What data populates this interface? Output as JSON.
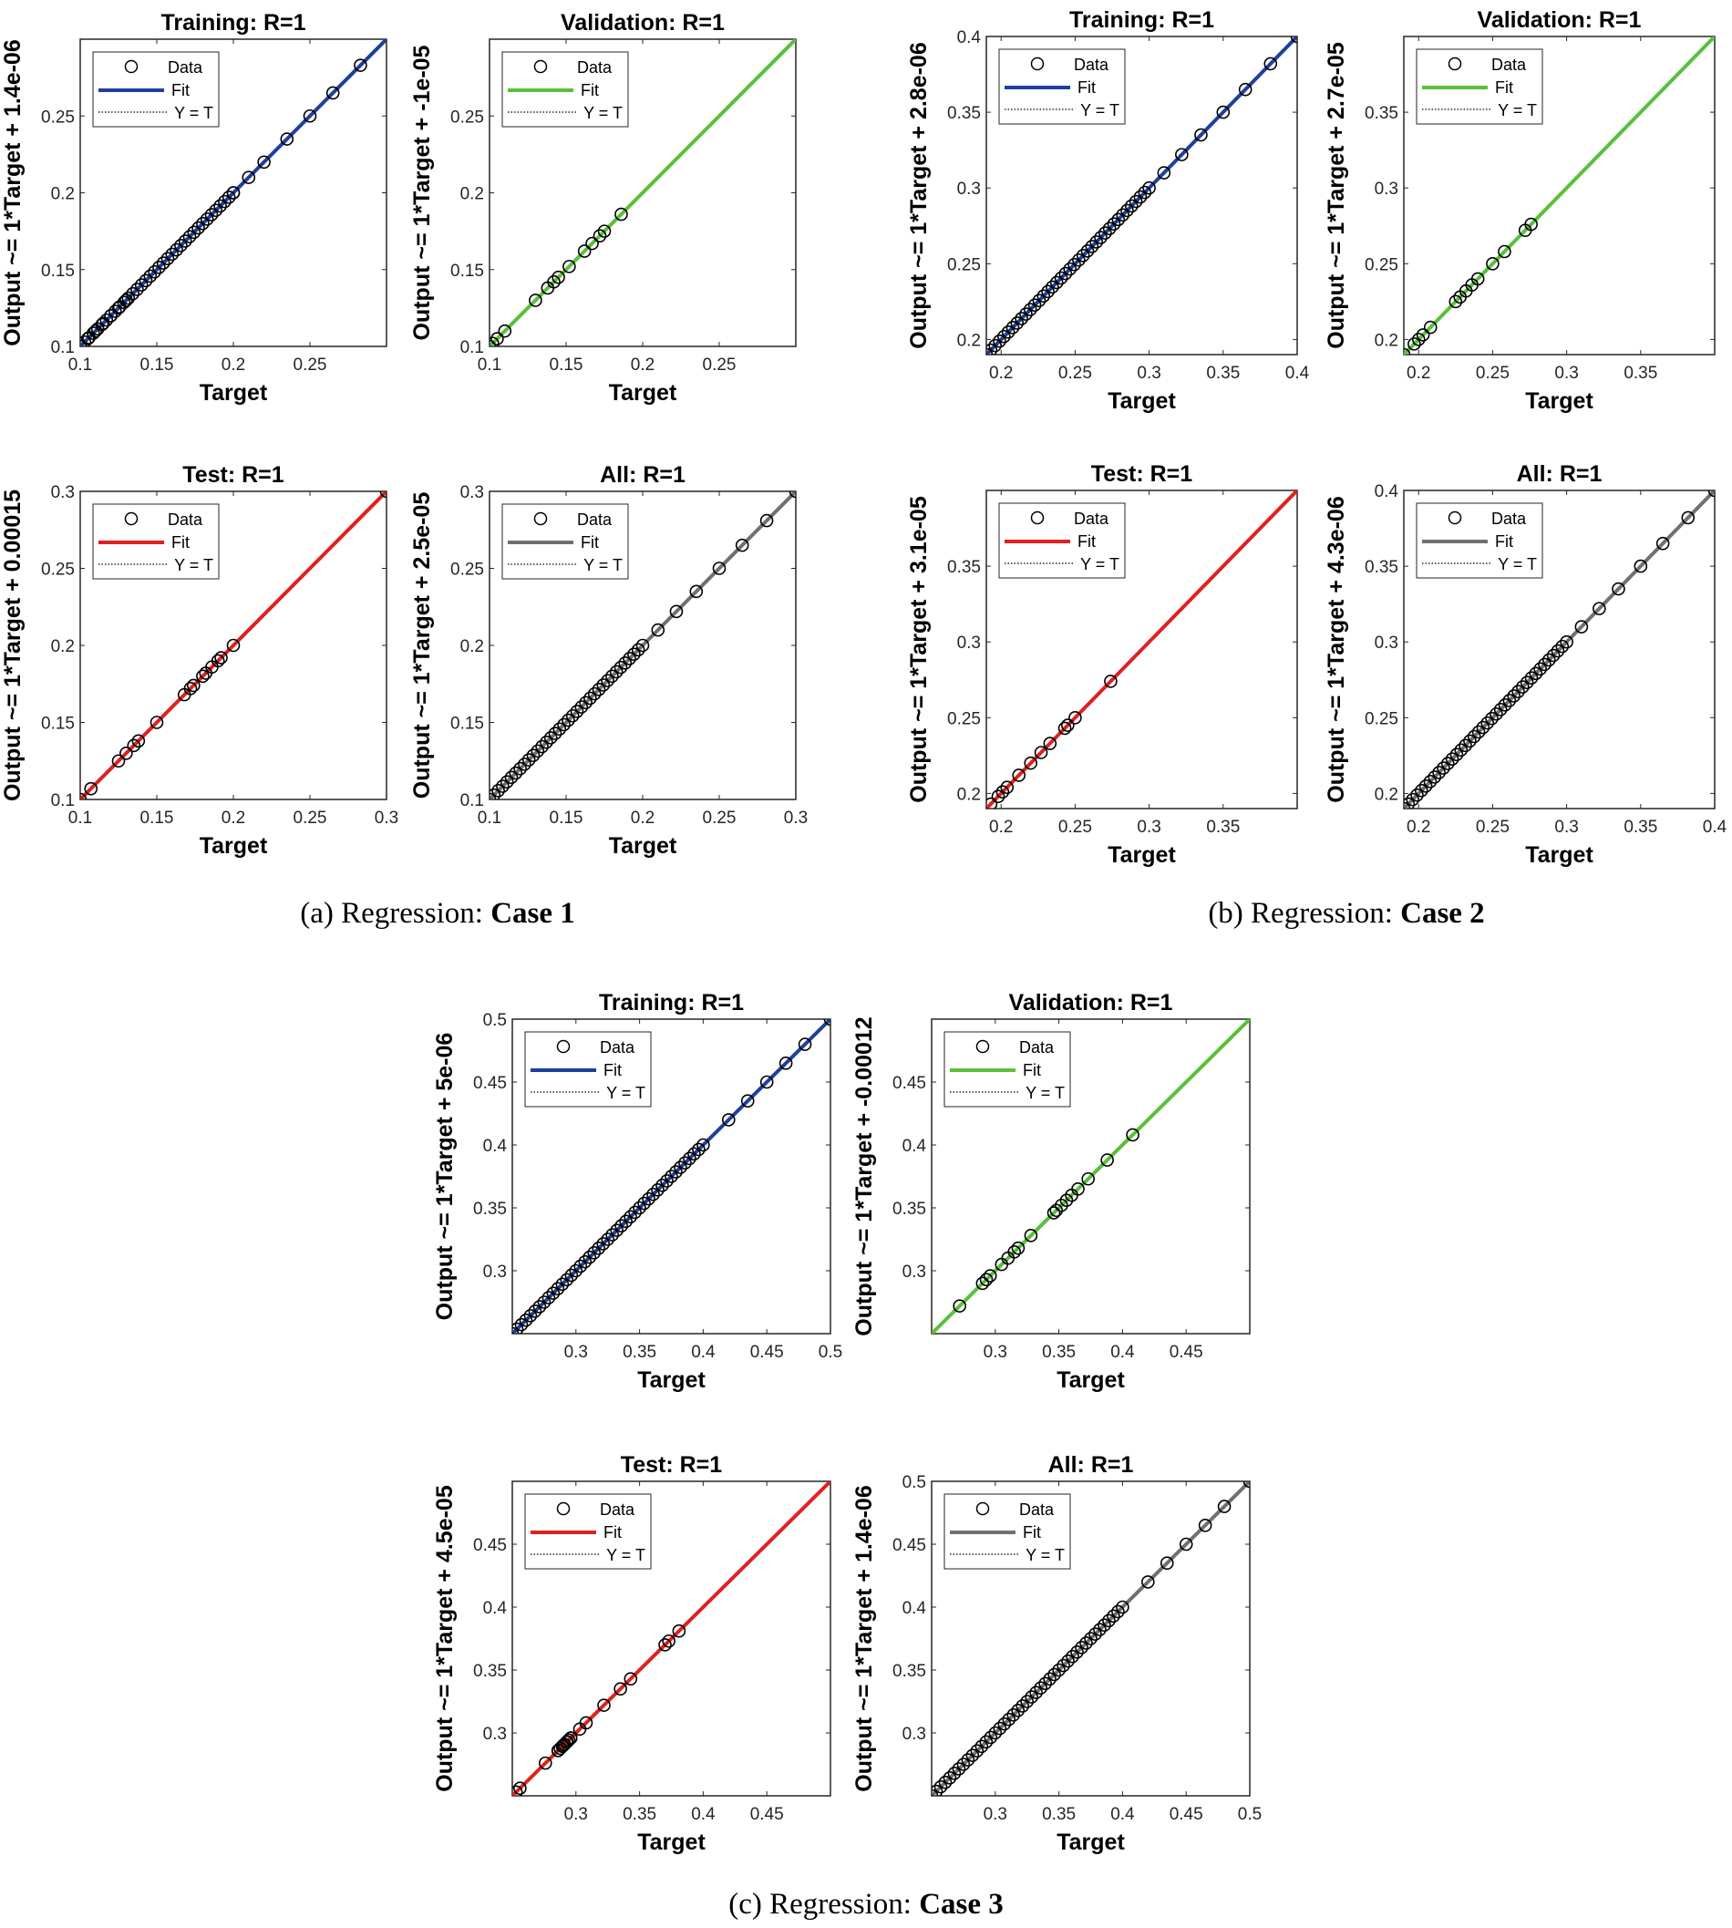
{
  "captions": [
    {
      "prefix": "(a) Regression: ",
      "bold": "Case 1"
    },
    {
      "prefix": "(b) Regression: ",
      "bold": "Case 2"
    },
    {
      "prefix": "(c) Regression: ",
      "bold": "Case 3"
    }
  ],
  "legend_labels": {
    "data": "Data",
    "fit": "Fit",
    "ident": "Y = T"
  },
  "colors": {
    "training": "#1f3f9f",
    "validation": "#5bbf3a",
    "test": "#e02020",
    "all": "#707070",
    "marker": "#000000",
    "yt_line": "#000000"
  },
  "chart_data": [
    {
      "type": "scatter",
      "group": "Case 1",
      "series": "training",
      "title": "Training: R=1",
      "xlabel": "Target",
      "ylabel": "Output ~= 1*Target + 1.4e-06",
      "xlim": [
        0.1,
        0.3
      ],
      "ylim": [
        0.1,
        0.3
      ],
      "xticks": [
        0.1,
        0.15,
        0.2,
        0.25
      ],
      "yticks": [
        0.1,
        0.15,
        0.2,
        0.25
      ],
      "fit_line": [
        [
          0.1,
          0.1
        ],
        [
          0.3,
          0.3
        ]
      ],
      "dense": [
        [
          0.1,
          0.2
        ]
      ],
      "points": [
        0.1,
        0.105,
        0.11,
        0.115,
        0.12,
        0.125,
        0.13,
        0.2,
        0.21,
        0.22,
        0.235,
        0.25,
        0.265,
        0.283
      ]
    },
    {
      "type": "scatter",
      "group": "Case 1",
      "series": "validation",
      "title": "Validation: R=1",
      "xlabel": "Target",
      "ylabel": "Output ~= 1*Target + -1e-05",
      "xlim": [
        0.1,
        0.3
      ],
      "ylim": [
        0.1,
        0.3
      ],
      "xticks": [
        0.1,
        0.15,
        0.2,
        0.25
      ],
      "yticks": [
        0.1,
        0.15,
        0.2,
        0.25
      ],
      "fit_line": [
        [
          0.1,
          0.1
        ],
        [
          0.3,
          0.3
        ]
      ],
      "dense": [],
      "points": [
        0.1,
        0.102,
        0.105,
        0.11,
        0.13,
        0.138,
        0.142,
        0.145,
        0.152,
        0.162,
        0.167,
        0.172,
        0.175,
        0.186
      ]
    },
    {
      "type": "scatter",
      "group": "Case 1",
      "series": "test",
      "title": "Test: R=1",
      "xlabel": "Target",
      "ylabel": "Output ~= 1*Target + 0.00015",
      "xlim": [
        0.1,
        0.3
      ],
      "ylim": [
        0.1,
        0.3
      ],
      "xticks": [
        0.1,
        0.15,
        0.2,
        0.25,
        0.3
      ],
      "yticks": [
        0.1,
        0.15,
        0.2,
        0.25,
        0.3
      ],
      "fit_line": [
        [
          0.1,
          0.1
        ],
        [
          0.3,
          0.3
        ]
      ],
      "dense": [],
      "points": [
        0.1,
        0.107,
        0.125,
        0.13,
        0.135,
        0.138,
        0.15,
        0.168,
        0.172,
        0.174,
        0.18,
        0.182,
        0.186,
        0.19,
        0.192,
        0.2,
        0.3
      ]
    },
    {
      "type": "scatter",
      "group": "Case 1",
      "series": "all",
      "title": "All: R=1",
      "xlabel": "Target",
      "ylabel": "Output ~= 1*Target + 2.5e-05",
      "xlim": [
        0.1,
        0.3
      ],
      "ylim": [
        0.1,
        0.3
      ],
      "xticks": [
        0.1,
        0.15,
        0.2,
        0.25,
        0.3
      ],
      "yticks": [
        0.1,
        0.15,
        0.2,
        0.25,
        0.3
      ],
      "fit_line": [
        [
          0.1,
          0.1
        ],
        [
          0.3,
          0.3
        ]
      ],
      "dense": [
        [
          0.1,
          0.2
        ]
      ],
      "points": [
        0.21,
        0.222,
        0.235,
        0.25,
        0.265,
        0.281,
        0.3
      ]
    },
    {
      "type": "scatter",
      "group": "Case 2",
      "series": "training",
      "title": "Training: R=1",
      "xlabel": "Target",
      "ylabel": "Output ~= 1*Target + 2.8e-06",
      "xlim": [
        0.19,
        0.4
      ],
      "ylim": [
        0.19,
        0.4
      ],
      "xticks": [
        0.2,
        0.25,
        0.3,
        0.35,
        0.4
      ],
      "yticks": [
        0.2,
        0.25,
        0.3,
        0.35,
        0.4
      ],
      "fit_line": [
        [
          0.19,
          0.19
        ],
        [
          0.4,
          0.4
        ]
      ],
      "dense": [
        [
          0.19,
          0.3
        ]
      ],
      "points": [
        0.19,
        0.31,
        0.322,
        0.335,
        0.35,
        0.365,
        0.382,
        0.4
      ]
    },
    {
      "type": "scatter",
      "group": "Case 2",
      "series": "validation",
      "title": "Validation: R=1",
      "xlabel": "Target",
      "ylabel": "Output ~= 1*Target + 2.7e-05",
      "xlim": [
        0.19,
        0.4
      ],
      "ylim": [
        0.19,
        0.4
      ],
      "xticks": [
        0.2,
        0.25,
        0.3,
        0.35
      ],
      "yticks": [
        0.2,
        0.25,
        0.3,
        0.35
      ],
      "fit_line": [
        [
          0.19,
          0.19
        ],
        [
          0.4,
          0.4
        ]
      ],
      "dense": [],
      "points": [
        0.19,
        0.197,
        0.2,
        0.203,
        0.208,
        0.225,
        0.228,
        0.232,
        0.236,
        0.24,
        0.25,
        0.258,
        0.272,
        0.276
      ]
    },
    {
      "type": "scatter",
      "group": "Case 2",
      "series": "test",
      "title": "Test: R=1",
      "xlabel": "Target",
      "ylabel": "Output ~= 1*Target + 3.1e-05",
      "xlim": [
        0.19,
        0.4
      ],
      "ylim": [
        0.19,
        0.4
      ],
      "xticks": [
        0.2,
        0.25,
        0.3,
        0.35
      ],
      "yticks": [
        0.2,
        0.25,
        0.3,
        0.35
      ],
      "fit_line": [
        [
          0.19,
          0.19
        ],
        [
          0.4,
          0.4
        ]
      ],
      "dense": [],
      "points": [
        0.193,
        0.198,
        0.201,
        0.204,
        0.212,
        0.22,
        0.227,
        0.233,
        0.243,
        0.245,
        0.25,
        0.274
      ]
    },
    {
      "type": "scatter",
      "group": "Case 2",
      "series": "all",
      "title": "All: R=1",
      "xlabel": "Target",
      "ylabel": "Output ~= 1*Target + 4.3e-06",
      "xlim": [
        0.19,
        0.4
      ],
      "ylim": [
        0.19,
        0.4
      ],
      "xticks": [
        0.2,
        0.25,
        0.3,
        0.35,
        0.4
      ],
      "yticks": [
        0.2,
        0.25,
        0.3,
        0.35,
        0.4
      ],
      "fit_line": [
        [
          0.19,
          0.19
        ],
        [
          0.4,
          0.4
        ]
      ],
      "dense": [
        [
          0.19,
          0.3
        ]
      ],
      "points": [
        0.31,
        0.322,
        0.335,
        0.35,
        0.365,
        0.382,
        0.4
      ]
    },
    {
      "type": "scatter",
      "group": "Case 3",
      "series": "training",
      "title": "Training: R=1",
      "xlabel": "Target",
      "ylabel": "Output ~= 1*Target + 5e-06",
      "xlim": [
        0.25,
        0.5
      ],
      "ylim": [
        0.25,
        0.5
      ],
      "xticks": [
        0.3,
        0.35,
        0.4,
        0.45,
        0.5
      ],
      "yticks": [
        0.3,
        0.35,
        0.4,
        0.45,
        0.5
      ],
      "fit_line": [
        [
          0.25,
          0.25
        ],
        [
          0.5,
          0.5
        ]
      ],
      "dense": [
        [
          0.25,
          0.4
        ]
      ],
      "points": [
        0.25,
        0.42,
        0.435,
        0.45,
        0.465,
        0.48,
        0.5
      ]
    },
    {
      "type": "scatter",
      "group": "Case 3",
      "series": "validation",
      "title": "Validation: R=1",
      "xlabel": "Target",
      "ylabel": "Output ~= 1*Target + -0.00012",
      "xlim": [
        0.25,
        0.5
      ],
      "ylim": [
        0.25,
        0.5
      ],
      "xticks": [
        0.3,
        0.35,
        0.4,
        0.45
      ],
      "yticks": [
        0.3,
        0.35,
        0.4,
        0.45
      ],
      "fit_line": [
        [
          0.25,
          0.25
        ],
        [
          0.5,
          0.5
        ]
      ],
      "dense": [],
      "points": [
        0.272,
        0.29,
        0.293,
        0.296,
        0.305,
        0.31,
        0.315,
        0.318,
        0.328,
        0.346,
        0.348,
        0.352,
        0.356,
        0.36,
        0.365,
        0.373,
        0.388,
        0.408
      ]
    },
    {
      "type": "scatter",
      "group": "Case 3",
      "series": "test",
      "title": "Test: R=1",
      "xlabel": "Target",
      "ylabel": "Output ~= 1*Target + 4.5e-05",
      "xlim": [
        0.25,
        0.5
      ],
      "ylim": [
        0.25,
        0.5
      ],
      "xticks": [
        0.3,
        0.35,
        0.4,
        0.45
      ],
      "yticks": [
        0.3,
        0.35,
        0.4,
        0.45
      ],
      "fit_line": [
        [
          0.25,
          0.25
        ],
        [
          0.5,
          0.5
        ]
      ],
      "dense": [
        [
          0.286,
          0.296
        ]
      ],
      "points": [
        0.253,
        0.256,
        0.276,
        0.286,
        0.29,
        0.293,
        0.296,
        0.303,
        0.308,
        0.322,
        0.335,
        0.343,
        0.37,
        0.373,
        0.381
      ]
    },
    {
      "type": "scatter",
      "group": "Case 3",
      "series": "all",
      "title": "All: R=1",
      "xlabel": "Target",
      "ylabel": "Output ~= 1*Target + 1.4e-06",
      "xlim": [
        0.25,
        0.5
      ],
      "ylim": [
        0.25,
        0.5
      ],
      "xticks": [
        0.3,
        0.35,
        0.4,
        0.45,
        0.5
      ],
      "yticks": [
        0.3,
        0.35,
        0.4,
        0.45,
        0.5
      ],
      "fit_line": [
        [
          0.25,
          0.25
        ],
        [
          0.5,
          0.5
        ]
      ],
      "dense": [
        [
          0.25,
          0.4
        ]
      ],
      "points": [
        0.42,
        0.435,
        0.45,
        0.465,
        0.48,
        0.5
      ]
    }
  ]
}
